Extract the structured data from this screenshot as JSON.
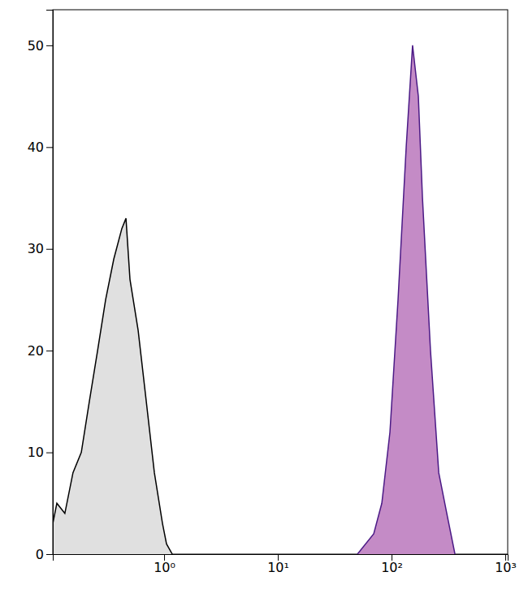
{
  "chart_data": {
    "type": "area",
    "log": "x",
    "xlim": [
      0.105,
      1050
    ],
    "ylim": [
      0,
      53.5
    ],
    "xticks": [
      {
        "value": 1,
        "label": "10⁰"
      },
      {
        "value": 10,
        "label": "10¹"
      },
      {
        "value": 100,
        "label": "10²"
      },
      {
        "value": 1000,
        "label": "10³"
      }
    ],
    "yticks": [
      0,
      10,
      20,
      30,
      40,
      50
    ],
    "series": [
      {
        "color": "#e0e0e0",
        "line_color": "#000000",
        "x": [
          0.105,
          0.114,
          0.134,
          0.158,
          0.187,
          0.22,
          0.26,
          0.306,
          0.361,
          0.425,
          0.462,
          0.501,
          0.591,
          0.697,
          0.821,
          0.968,
          1.05,
          1.18
        ],
        "values": [
          3,
          5,
          4,
          8,
          10,
          15,
          20,
          25,
          29,
          32,
          33,
          27,
          22,
          15,
          8,
          3,
          1,
          0
        ]
      },
      {
        "color": "#c48bc6",
        "line_color": "#4b1a86",
        "x": [
          50.1,
          69.7,
          82.1,
          96.8,
          114,
          134.5,
          153,
          172,
          187,
          220,
          260,
          306,
          361
        ],
        "values": [
          0,
          2,
          5,
          12,
          25,
          40,
          50,
          45,
          35,
          20,
          8,
          4,
          0
        ]
      }
    ]
  }
}
